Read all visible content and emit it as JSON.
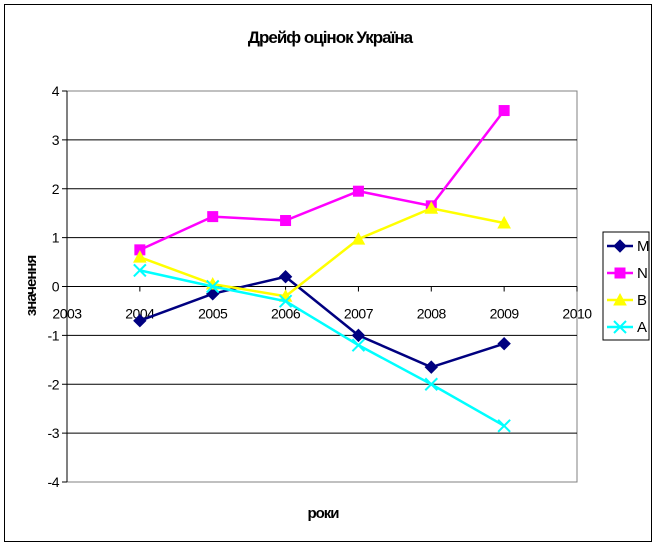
{
  "chart_data": {
    "type": "line",
    "title": "Дрейф оцінок Україна",
    "xlabel": "роки",
    "ylabel": "значення",
    "xlim": [
      2003,
      2010
    ],
    "ylim": [
      -4,
      4
    ],
    "x_ticks": [
      "2003",
      "2004",
      "2005",
      "2006",
      "2007",
      "2008",
      "2009",
      "2010"
    ],
    "y_ticks": [
      "4",
      "3",
      "2",
      "1",
      "0",
      "-1",
      "-2",
      "-3",
      "-4"
    ],
    "grid": "horizontal",
    "legend_position": "right",
    "x": [
      2004,
      2005,
      2006,
      2007,
      2008,
      2009
    ],
    "series": [
      {
        "name": "M",
        "color": "#000080",
        "marker": "diamond",
        "values": [
          -0.7,
          -0.15,
          0.2,
          -1.0,
          -1.65,
          -1.17
        ]
      },
      {
        "name": "N",
        "color": "#FF00FF",
        "marker": "square",
        "values": [
          0.75,
          1.43,
          1.35,
          1.95,
          1.65,
          3.6
        ]
      },
      {
        "name": "B",
        "color": "#FFFF00",
        "marker": "triangle",
        "values": [
          0.6,
          0.05,
          -0.2,
          0.97,
          1.6,
          1.3
        ]
      },
      {
        "name": "A",
        "color": "#00FFFF",
        "marker": "x",
        "values": [
          0.33,
          0.0,
          -0.3,
          -1.2,
          -2.0,
          -2.85
        ]
      }
    ]
  }
}
